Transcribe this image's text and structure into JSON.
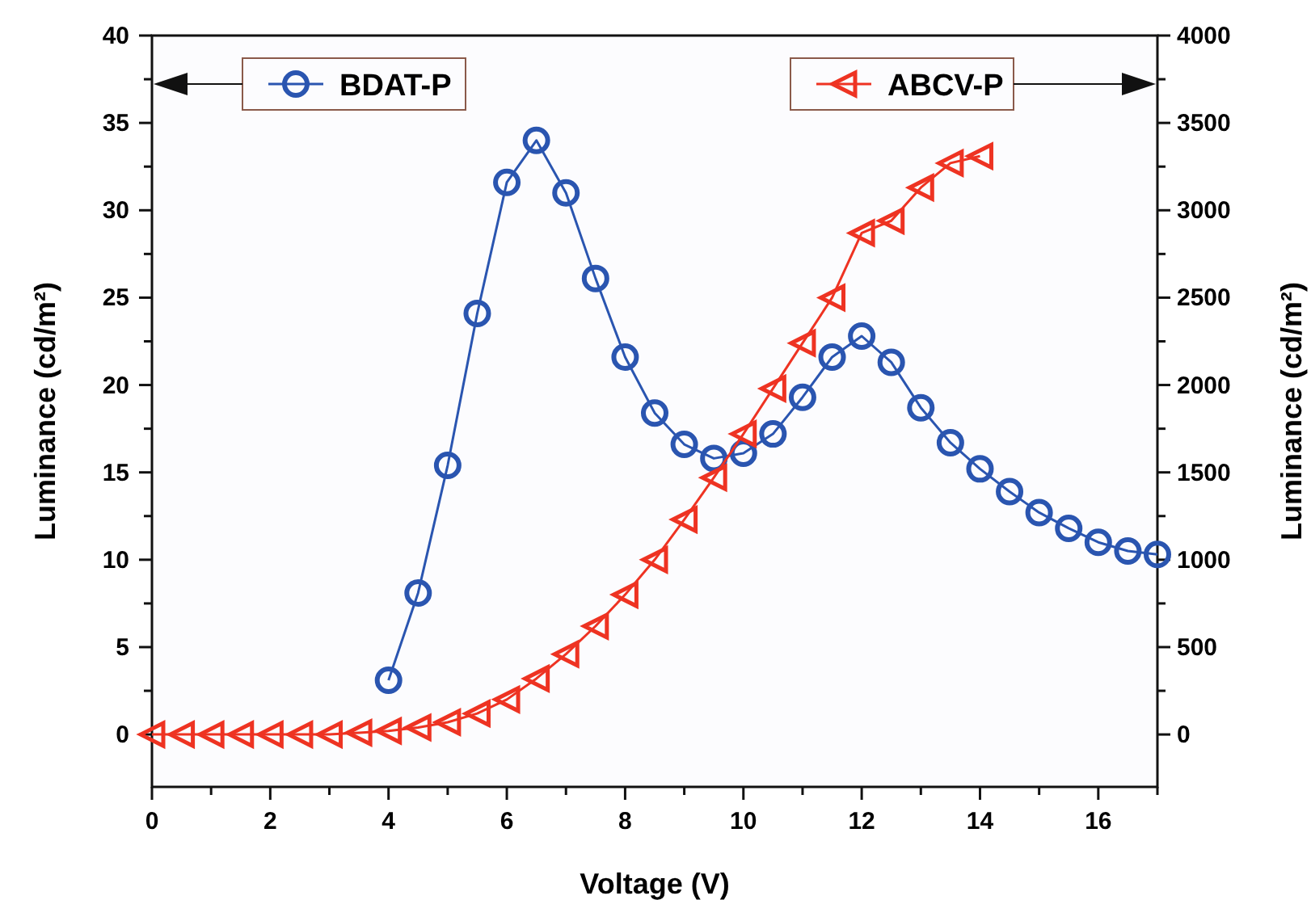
{
  "chart_data": {
    "type": "line",
    "xlabel": "Voltage (V)",
    "ylabel": "Luminance (cd/m²)",
    "y2label": "Luminance (cd/m²)",
    "xlim": [
      0,
      17
    ],
    "xticks": [
      0,
      {
        "value": 1,
        "label": null
      },
      2,
      {
        "value": 3,
        "label": null
      },
      4,
      {
        "value": 5,
        "label": null
      },
      6,
      {
        "value": 7,
        "label": null
      },
      8,
      {
        "value": 9,
        "label": null
      },
      10,
      {
        "value": 11,
        "label": null
      },
      12,
      {
        "value": 13,
        "label": null
      },
      14,
      {
        "value": 15,
        "label": null
      },
      16,
      {
        "value": 17,
        "label": null
      }
    ],
    "ylim": [
      -3,
      40
    ],
    "yticks": [
      0,
      {
        "value": 2.5,
        "label": null
      },
      5,
      {
        "value": 7.5,
        "label": null
      },
      10,
      {
        "value": 12.5,
        "label": null
      },
      15,
      {
        "value": 17.5,
        "label": null
      },
      20,
      {
        "value": 22.5,
        "label": null
      },
      25,
      {
        "value": 27.5,
        "label": null
      },
      30,
      {
        "value": 32.5,
        "label": null
      },
      35,
      {
        "value": 37.5,
        "label": null
      },
      40
    ],
    "y2lim": [
      -300,
      4000
    ],
    "y2ticks": [
      0,
      {
        "value": 250,
        "label": null
      },
      500,
      {
        "value": 750,
        "label": null
      },
      1000,
      {
        "value": 1250,
        "label": null
      },
      1500,
      {
        "value": 1750,
        "label": null
      },
      2000,
      {
        "value": 2250,
        "label": null
      },
      2500,
      {
        "value": 2750,
        "label": null
      },
      3000,
      {
        "value": 3250,
        "label": null
      },
      3500,
      {
        "value": 3750,
        "label": null
      },
      4000
    ],
    "legend": "top",
    "series": [
      {
        "name": "BDAT-P",
        "color": "#2a55b0",
        "marker": "circle",
        "x": [
          4,
          4.5,
          5,
          5.5,
          6,
          6.5,
          7,
          7.5,
          8,
          8.5,
          9,
          9.5,
          10,
          10.5,
          11,
          11.5,
          12,
          12.5,
          13,
          13.5,
          14,
          14.5,
          15,
          15.5,
          16,
          16.5,
          17
        ],
        "values": [
          3.1,
          8.1,
          15.4,
          24.1,
          31.6,
          34.0,
          31.0,
          26.1,
          21.6,
          18.4,
          16.6,
          15.8,
          16.1,
          17.2,
          19.3,
          21.6,
          22.8,
          21.3,
          18.7,
          16.7,
          15.2,
          13.9,
          12.7,
          11.8,
          11.0,
          10.5,
          10.3
        ]
      },
      {
        "name": "ABCV-P",
        "color": "#ee3322",
        "marker": "triangle",
        "axis": "y2",
        "x": [
          0,
          0.5,
          1,
          1.5,
          2,
          2.5,
          3,
          3.5,
          4,
          4.5,
          5,
          5.5,
          6,
          6.5,
          7,
          7.5,
          8,
          8.5,
          9,
          9.5,
          10,
          10.5,
          11,
          11.5,
          12,
          12.5,
          13,
          13.5,
          14
        ],
        "values": [
          0,
          0,
          0,
          0,
          0,
          0,
          0,
          10,
          20,
          40,
          70,
          120,
          200,
          320,
          460,
          620,
          800,
          1000,
          1230,
          1470,
          1720,
          1980,
          2240,
          2500,
          2870,
          2940,
          3130,
          3270,
          3310
        ]
      }
    ]
  }
}
